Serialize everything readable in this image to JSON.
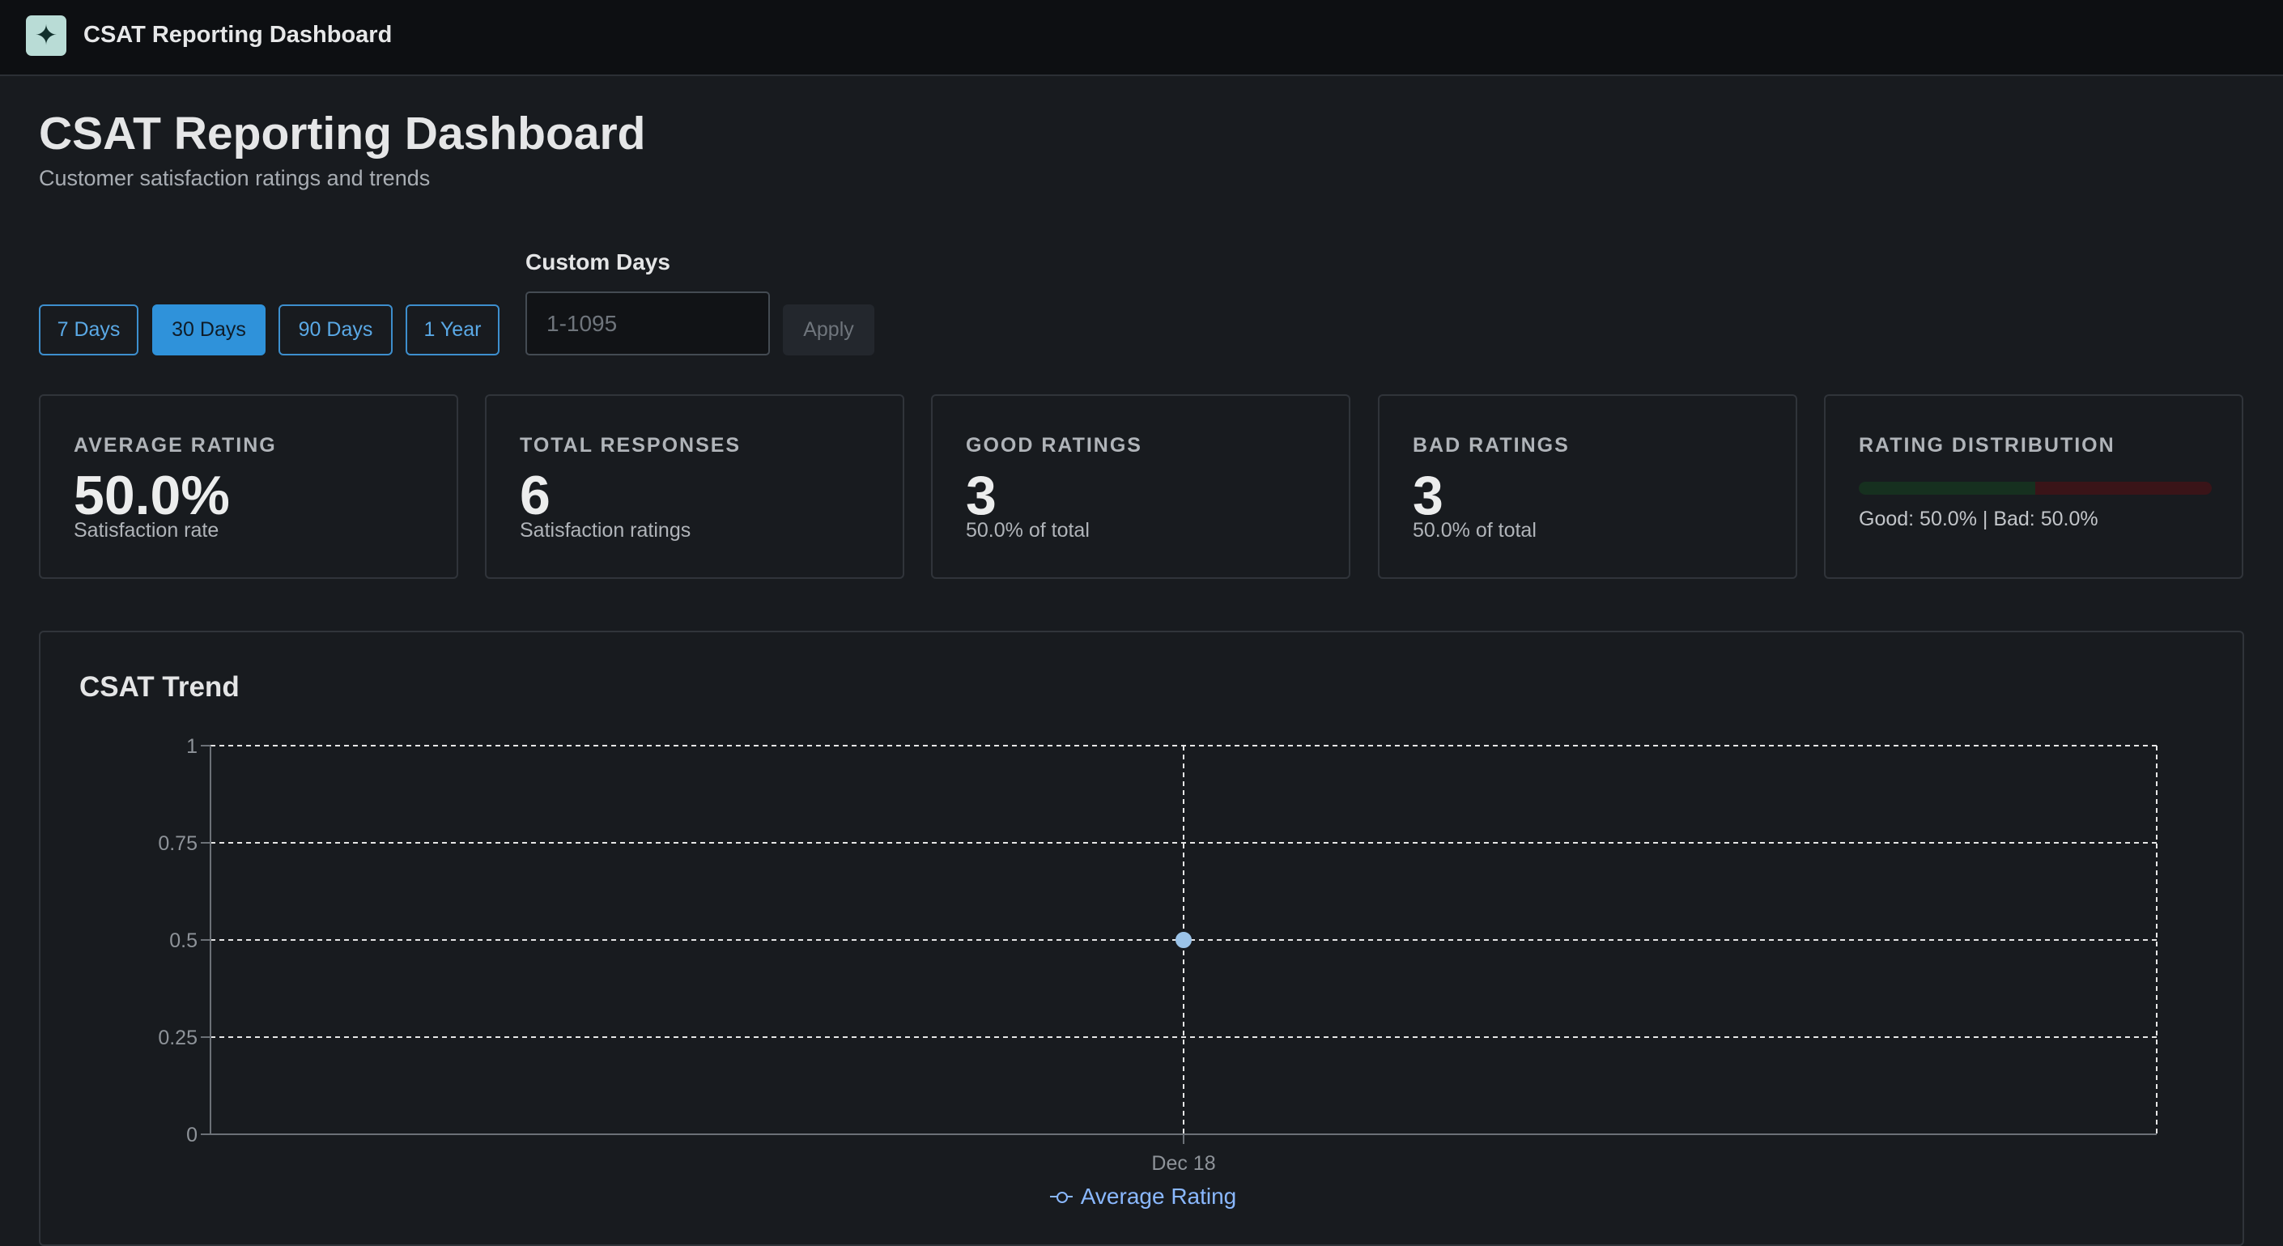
{
  "app": {
    "icon": "sparkle-icon",
    "title": "CSAT Reporting Dashboard"
  },
  "page": {
    "title": "CSAT Reporting Dashboard",
    "subtitle": "Customer satisfaction ratings and trends"
  },
  "filters": {
    "ranges": [
      "7 Days",
      "30 Days",
      "90 Days",
      "1 Year"
    ],
    "active_range": "30 Days",
    "custom_label": "Custom Days",
    "custom_placeholder": "1-1095",
    "custom_value": "",
    "apply_label": "Apply"
  },
  "stats": {
    "average": {
      "label": "AVERAGE RATING",
      "value": "50.0%",
      "sub": "Satisfaction rate"
    },
    "total": {
      "label": "TOTAL RESPONSES",
      "value": "6",
      "sub": "Satisfaction ratings"
    },
    "good": {
      "label": "GOOD RATINGS",
      "value": "3",
      "sub": "50.0% of total"
    },
    "bad": {
      "label": "BAD RATINGS",
      "value": "3",
      "sub": "50.0% of total"
    },
    "distribution": {
      "label": "RATING DISTRIBUTION",
      "good_fraction": 0.5,
      "bad_fraction": 0.5,
      "text": "Good: 50.0% | Bad: 50.0%"
    }
  },
  "colors": {
    "accent": "#2f92da",
    "series": "#8ab8ff",
    "good": "#16301f",
    "bad": "#3a1418"
  },
  "chart_data": {
    "type": "line",
    "title": "CSAT Trend",
    "x": [
      "Dec 18"
    ],
    "series": [
      {
        "name": "Average Rating",
        "values": [
          0.5
        ]
      }
    ],
    "ylim": [
      0,
      1
    ],
    "yticks": [
      "0",
      "0.25",
      "0.5",
      "0.75",
      "1"
    ],
    "grid": true,
    "legend": "bottom"
  }
}
